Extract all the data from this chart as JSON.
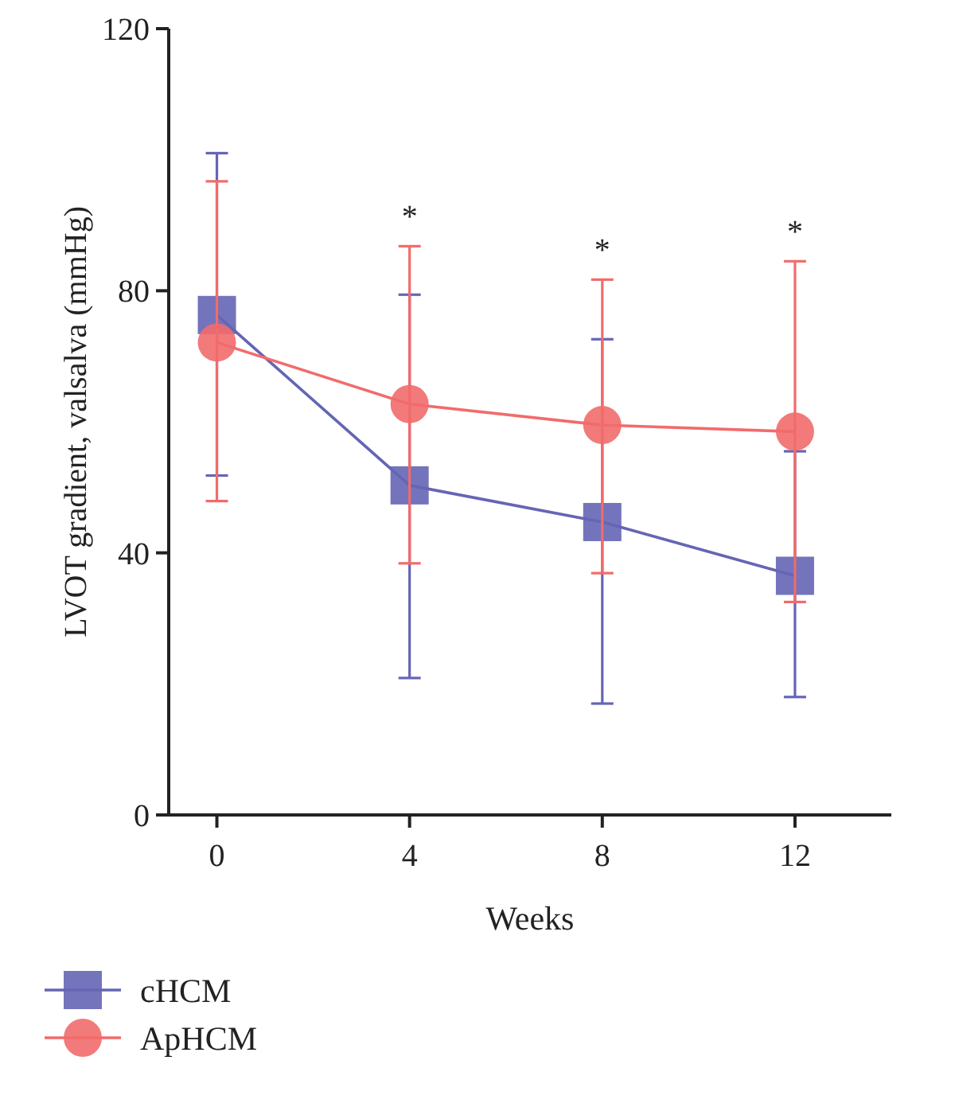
{
  "chart_data": {
    "type": "line",
    "xlabel": "Weeks",
    "ylabel": "LVOT gradient, valsalva (mmHg)",
    "x": [
      0,
      4,
      8,
      12
    ],
    "xlim": [
      -1,
      14
    ],
    "xticks": [
      0,
      4,
      8,
      12
    ],
    "ylim": [
      0,
      120
    ],
    "yticks": [
      0,
      40,
      80,
      120
    ],
    "grid": false,
    "legend": "bottom left",
    "series": [
      {
        "name": "cHCM",
        "color": "#6565b5",
        "marker": "square",
        "values": [
          76.3,
          50.3,
          44.7,
          36.5
        ],
        "errors": [
          [
            51.8,
            101
          ],
          [
            20.9,
            79.4
          ],
          [
            17,
            72.6
          ],
          [
            18,
            55.5
          ]
        ]
      },
      {
        "name": "ApHCM",
        "color": "#f26b6b",
        "marker": "circle",
        "values": [
          72.1,
          62.7,
          59.5,
          58.5
        ],
        "errors": [
          [
            47.9,
            96.7
          ],
          [
            38.4,
            86.8
          ],
          [
            36.9,
            81.7
          ],
          [
            32.5,
            84.5
          ]
        ]
      }
    ],
    "annotations": [
      "*",
      "*",
      "*"
    ]
  }
}
